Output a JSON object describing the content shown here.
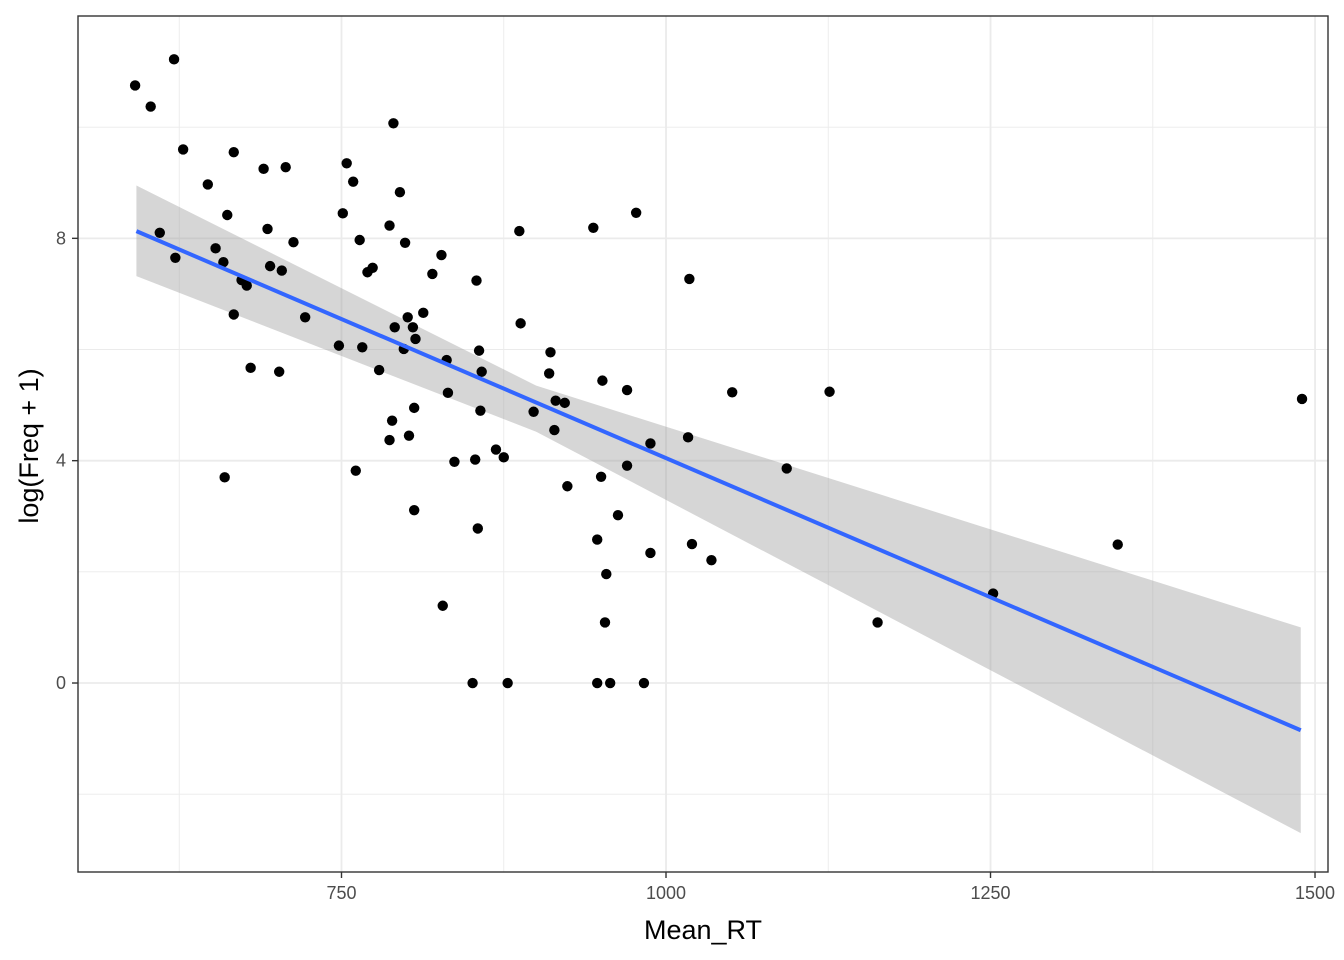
{
  "chart_data": {
    "type": "scatter",
    "xlabel": "Mean_RT",
    "ylabel": "log(Freq + 1)",
    "xlim": [
      547,
      1510
    ],
    "ylim": [
      -3.4,
      12
    ],
    "x_ticks": [
      750,
      1000,
      1250,
      1500
    ],
    "x_tick_labels": [
      "750",
      "1000",
      "1250",
      "1500"
    ],
    "y_ticks": [
      0,
      4,
      8
    ],
    "y_tick_labels": [
      "0",
      "4",
      "8"
    ],
    "grid": true,
    "points": [
      {
        "x": 591,
        "y": 10.75
      },
      {
        "x": 603,
        "y": 10.37
      },
      {
        "x": 621,
        "y": 11.22
      },
      {
        "x": 628,
        "y": 9.6
      },
      {
        "x": 610,
        "y": 8.1
      },
      {
        "x": 622,
        "y": 7.65
      },
      {
        "x": 647,
        "y": 8.97
      },
      {
        "x": 653,
        "y": 7.82
      },
      {
        "x": 659,
        "y": 7.57
      },
      {
        "x": 660,
        "y": 3.7
      },
      {
        "x": 662,
        "y": 8.42
      },
      {
        "x": 667,
        "y": 9.55
      },
      {
        "x": 667,
        "y": 6.63
      },
      {
        "x": 673,
        "y": 7.25
      },
      {
        "x": 677,
        "y": 7.15
      },
      {
        "x": 680,
        "y": 5.67
      },
      {
        "x": 690,
        "y": 9.25
      },
      {
        "x": 693,
        "y": 8.17
      },
      {
        "x": 695,
        "y": 7.5
      },
      {
        "x": 702,
        "y": 5.6
      },
      {
        "x": 704,
        "y": 7.42
      },
      {
        "x": 707,
        "y": 9.28
      },
      {
        "x": 713,
        "y": 7.93
      },
      {
        "x": 722,
        "y": 6.58
      },
      {
        "x": 748,
        "y": 6.07
      },
      {
        "x": 751,
        "y": 8.45
      },
      {
        "x": 754,
        "y": 9.35
      },
      {
        "x": 759,
        "y": 9.02
      },
      {
        "x": 761,
        "y": 3.82
      },
      {
        "x": 764,
        "y": 7.97
      },
      {
        "x": 766,
        "y": 6.04
      },
      {
        "x": 770,
        "y": 7.39
      },
      {
        "x": 774,
        "y": 7.47
      },
      {
        "x": 779,
        "y": 5.63
      },
      {
        "x": 787,
        "y": 4.37
      },
      {
        "x": 787,
        "y": 8.23
      },
      {
        "x": 789,
        "y": 4.72
      },
      {
        "x": 790,
        "y": 10.07
      },
      {
        "x": 791,
        "y": 6.4
      },
      {
        "x": 795,
        "y": 8.83
      },
      {
        "x": 798,
        "y": 6.01
      },
      {
        "x": 799,
        "y": 7.92
      },
      {
        "x": 801,
        "y": 6.58
      },
      {
        "x": 802,
        "y": 4.45
      },
      {
        "x": 805,
        "y": 6.4
      },
      {
        "x": 806,
        "y": 3.11
      },
      {
        "x": 806,
        "y": 4.95
      },
      {
        "x": 807,
        "y": 6.19
      },
      {
        "x": 813,
        "y": 6.66
      },
      {
        "x": 820,
        "y": 7.36
      },
      {
        "x": 827,
        "y": 7.7
      },
      {
        "x": 828,
        "y": 1.39
      },
      {
        "x": 831,
        "y": 5.81
      },
      {
        "x": 832,
        "y": 5.22
      },
      {
        "x": 837,
        "y": 3.98
      },
      {
        "x": 851,
        "y": 0
      },
      {
        "x": 853,
        "y": 4.02
      },
      {
        "x": 854,
        "y": 7.24
      },
      {
        "x": 855,
        "y": 2.78
      },
      {
        "x": 856,
        "y": 5.98
      },
      {
        "x": 857,
        "y": 4.9
      },
      {
        "x": 858,
        "y": 5.6
      },
      {
        "x": 869,
        "y": 4.2
      },
      {
        "x": 875,
        "y": 4.06
      },
      {
        "x": 878,
        "y": 0
      },
      {
        "x": 887,
        "y": 8.13
      },
      {
        "x": 888,
        "y": 6.47
      },
      {
        "x": 898,
        "y": 4.88
      },
      {
        "x": 910,
        "y": 5.57
      },
      {
        "x": 911,
        "y": 5.95
      },
      {
        "x": 914,
        "y": 4.55
      },
      {
        "x": 915,
        "y": 5.08
      },
      {
        "x": 922,
        "y": 5.04
      },
      {
        "x": 924,
        "y": 3.54
      },
      {
        "x": 944,
        "y": 8.19
      },
      {
        "x": 947,
        "y": 2.58
      },
      {
        "x": 947,
        "y": 0
      },
      {
        "x": 950,
        "y": 3.71
      },
      {
        "x": 951,
        "y": 5.44
      },
      {
        "x": 953,
        "y": 1.09
      },
      {
        "x": 954,
        "y": 1.96
      },
      {
        "x": 957,
        "y": 0
      },
      {
        "x": 963,
        "y": 3.02
      },
      {
        "x": 970,
        "y": 5.27
      },
      {
        "x": 970,
        "y": 3.91
      },
      {
        "x": 977,
        "y": 8.46
      },
      {
        "x": 983,
        "y": 0
      },
      {
        "x": 988,
        "y": 4.31
      },
      {
        "x": 988,
        "y": 2.34
      },
      {
        "x": 1017,
        "y": 4.42
      },
      {
        "x": 1018,
        "y": 7.27
      },
      {
        "x": 1020,
        "y": 2.5
      },
      {
        "x": 1035,
        "y": 2.21
      },
      {
        "x": 1051,
        "y": 5.23
      },
      {
        "x": 1093,
        "y": 3.86
      },
      {
        "x": 1126,
        "y": 5.24
      },
      {
        "x": 1163,
        "y": 1.09
      },
      {
        "x": 1252,
        "y": 1.61
      },
      {
        "x": 1348,
        "y": 2.49
      },
      {
        "x": 1490,
        "y": 5.11
      }
    ],
    "trend": {
      "method": "linear",
      "x_start": 592,
      "y_start": 8.13,
      "x_end": 1489,
      "y_end": -0.85,
      "band_lower": [
        [
          592,
          7.32
        ],
        [
          900,
          4.52
        ],
        [
          1489,
          -2.7
        ]
      ],
      "band_upper": [
        [
          592,
          8.95
        ],
        [
          900,
          5.35
        ],
        [
          1489,
          1.0
        ]
      ]
    },
    "colors": {
      "points": "#000000",
      "trend_line": "#3366FF",
      "band": "#999999",
      "grid": "#ebebeb",
      "panel_border": "#333333"
    }
  }
}
